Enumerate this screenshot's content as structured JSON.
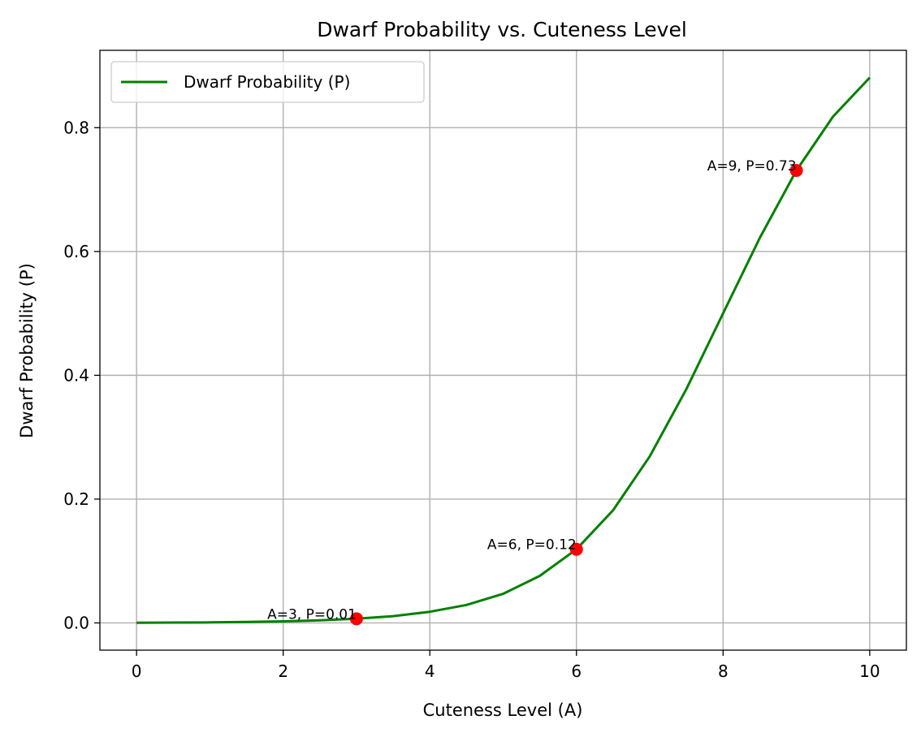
{
  "chart_data": {
    "type": "line",
    "title": "Dwarf Probability vs. Cuteness Level",
    "xlabel": "Cuteness Level (A)",
    "ylabel": "Dwarf Probability (P)",
    "xlim": [
      -0.5,
      10.5
    ],
    "ylim": [
      -0.044,
      0.925
    ],
    "xticks": [
      0,
      2,
      4,
      6,
      8,
      10
    ],
    "xtick_labels": [
      "0",
      "2",
      "4",
      "6",
      "8",
      "10"
    ],
    "yticks": [
      0.0,
      0.2,
      0.4,
      0.6,
      0.8
    ],
    "ytick_labels": [
      "0.0",
      "0.2",
      "0.4",
      "0.6",
      "0.8"
    ],
    "grid": true,
    "legend_position": "upper-left",
    "series": [
      {
        "name": "Dwarf Probability (P)",
        "color": "#008000",
        "kind": "line",
        "x": [
          0,
          0.5,
          1,
          1.5,
          2,
          2.5,
          3,
          3.5,
          4,
          4.5,
          5,
          5.5,
          6,
          6.5,
          7,
          7.5,
          8,
          8.5,
          9,
          9.5,
          10
        ],
        "y": [
          0.0003,
          0.0006,
          0.0009,
          0.0015,
          0.0025,
          0.0041,
          0.0067,
          0.011,
          0.018,
          0.029,
          0.047,
          0.076,
          0.119,
          0.182,
          0.269,
          0.378,
          0.5,
          0.622,
          0.731,
          0.818,
          0.881
        ]
      }
    ],
    "points": [
      {
        "x": 3,
        "y": 0.0067,
        "label": "A=3, P=0.01"
      },
      {
        "x": 6,
        "y": 0.119,
        "label": "A=6, P=0.12"
      },
      {
        "x": 9,
        "y": 0.731,
        "label": "A=9, P=0.73"
      }
    ],
    "point_color": "#ff0000"
  }
}
